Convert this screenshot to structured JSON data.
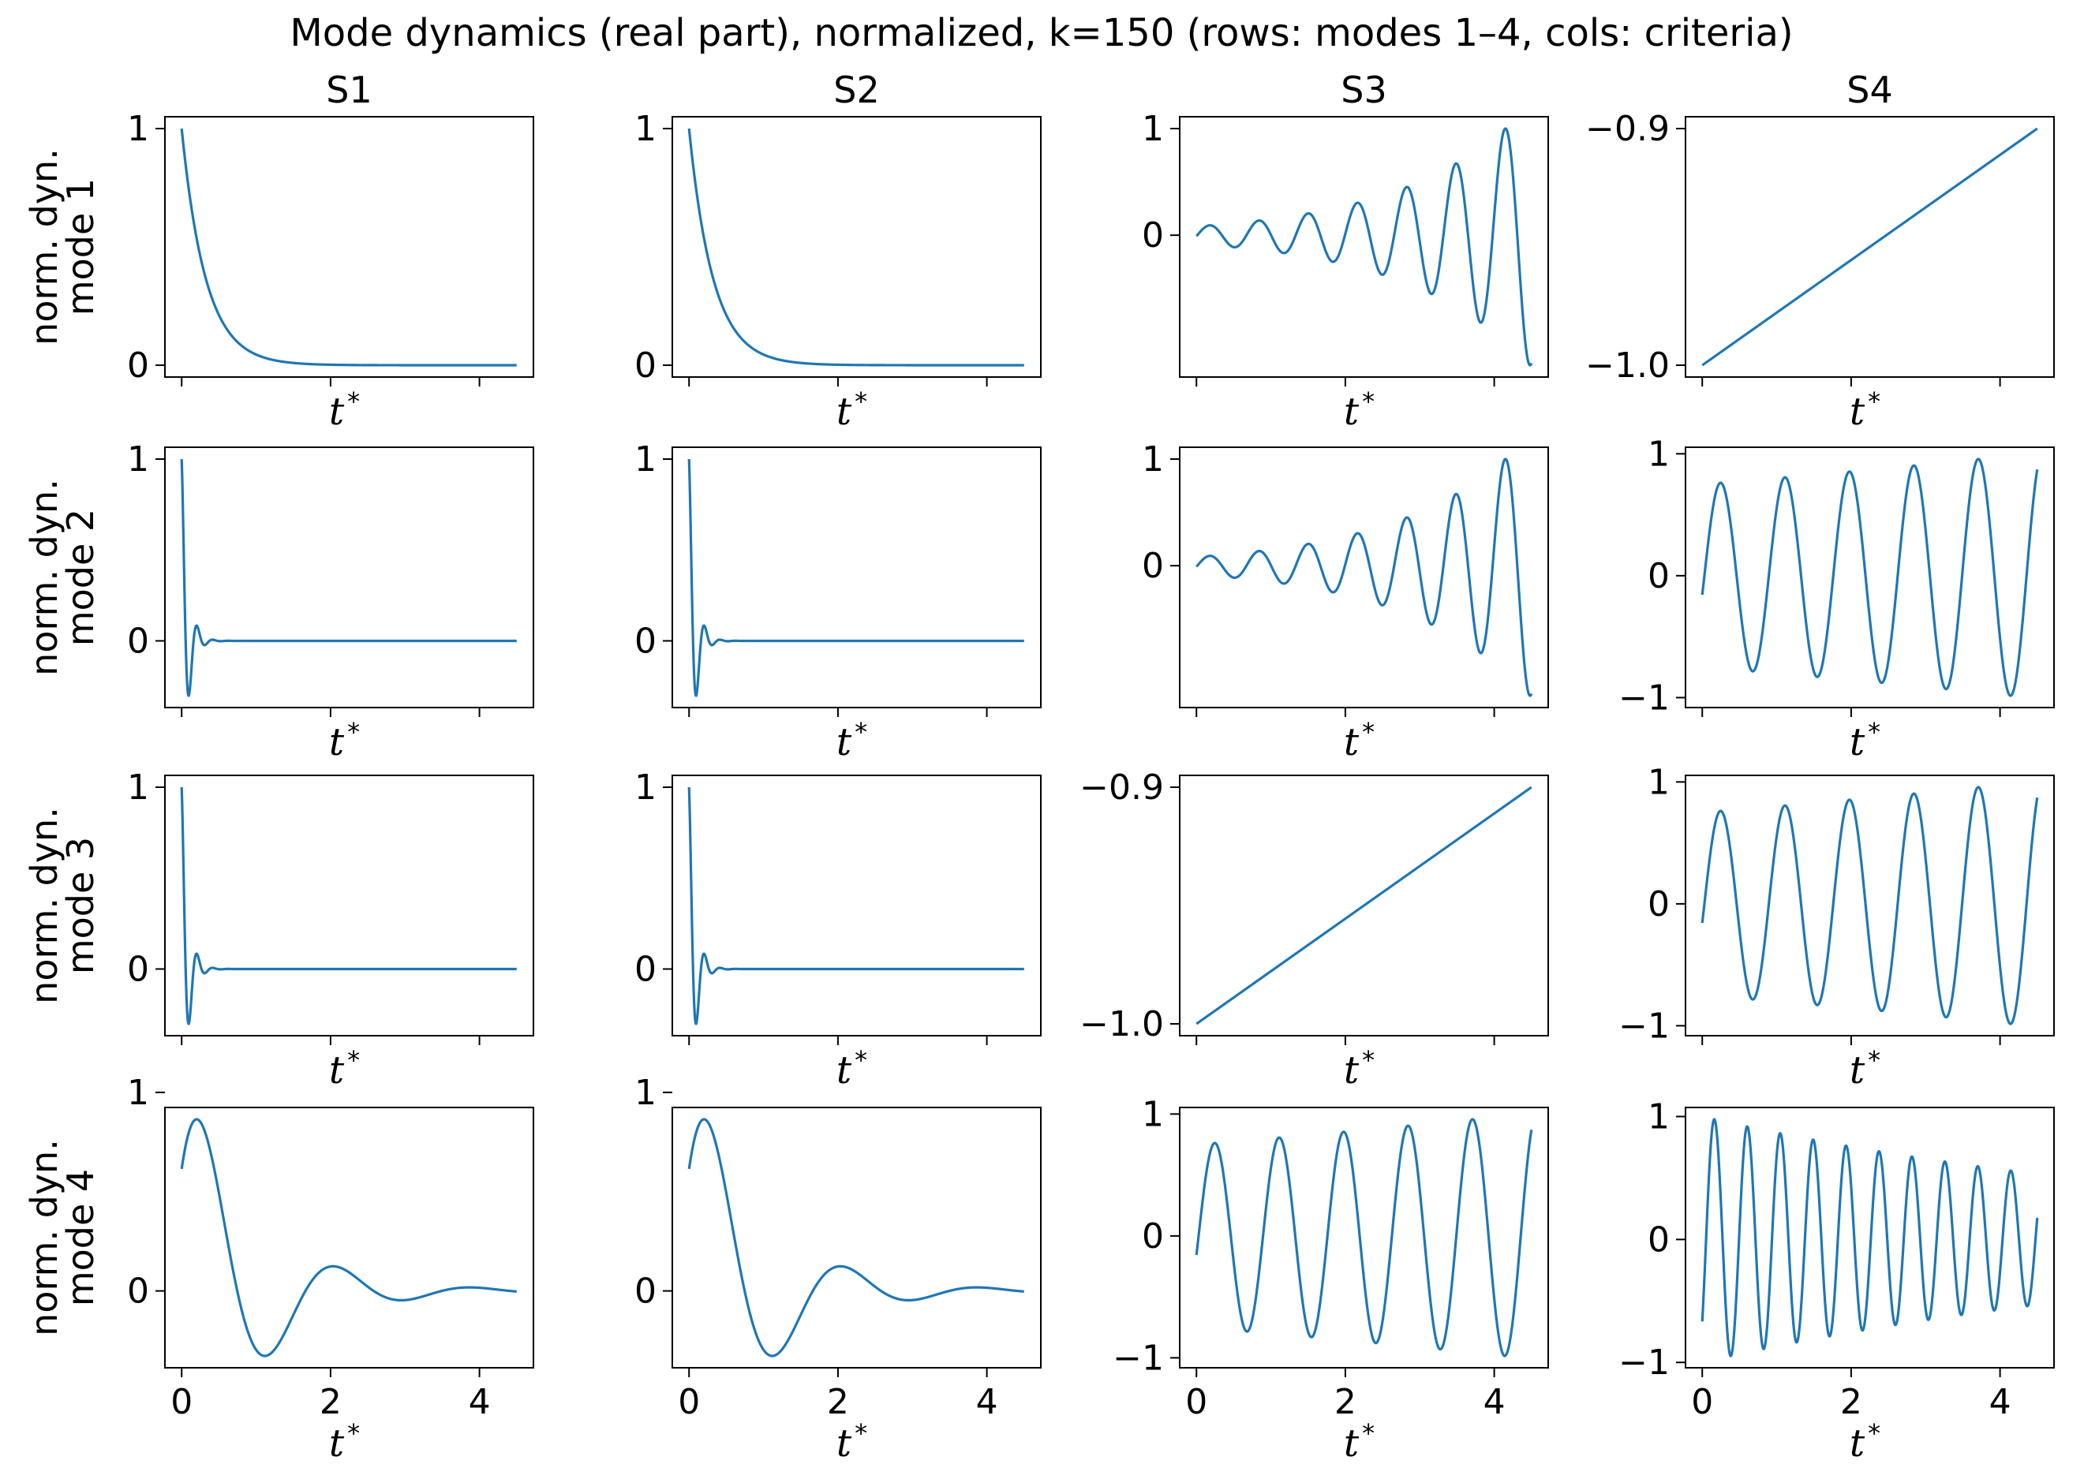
{
  "title": "Mode dynamics (real part), normalized, k=150  (rows: modes 1–4, cols: criteria)",
  "x_label_italic": "t",
  "x_label_sup": "*",
  "y_label_line1": "norm. dyn.",
  "columns": [
    "S1",
    "S2",
    "S3",
    "S4"
  ],
  "rows": [
    "mode 1",
    "mode 2",
    "mode 3",
    "mode 4"
  ],
  "colors": {
    "line": "#1f77b4",
    "axes": "#000000",
    "background": "#ffffff"
  },
  "chart_data": {
    "type": "line",
    "layout": "grid 4x4, shared x axis",
    "x_range": [
      0,
      4.5
    ],
    "x_ticks": [
      "0",
      "2",
      "4"
    ],
    "xlabel": "t*",
    "grid": false,
    "legend": "none",
    "panels": [
      [
        {
          "row": "mode 1",
          "col": "S1",
          "type": "line",
          "shape": "exponential decay 1 → 0",
          "ylim": [
            0,
            1
          ],
          "y_ticks": [
            {
              "v": 1,
              "label": "1"
            },
            {
              "v": 0,
              "label": "0"
            }
          ]
        },
        {
          "row": "mode 1",
          "col": "S2",
          "type": "line",
          "shape": "exponential decay 1 → 0",
          "ylim": [
            0,
            1
          ],
          "y_ticks": [
            {
              "v": 1,
              "label": "1"
            },
            {
              "v": 0,
              "label": "0"
            }
          ]
        },
        {
          "row": "mode 1",
          "col": "S3",
          "type": "line",
          "shape": "growing oscillation, peak 1 at t≈4.3, min ≈ -0.8",
          "ylim": [
            -0.8,
            1
          ],
          "y_ticks": [
            {
              "v": 1,
              "label": "1"
            },
            {
              "v": 0,
              "label": "0"
            }
          ]
        },
        {
          "row": "mode 1",
          "col": "S4",
          "type": "line",
          "shape": "linear -1.0 → -0.9",
          "ylim": [
            -1.0,
            -0.9
          ],
          "y_ticks": [
            {
              "v": -0.9,
              "label": "−0.9"
            },
            {
              "v": -1.0,
              "label": "−1.0"
            }
          ]
        }
      ],
      [
        {
          "row": "mode 2",
          "col": "S1",
          "type": "line",
          "shape": "fast damped oscillation, dip ≈ -0.7 at t≈0.1, settles to 0",
          "ylim": [
            -0.7,
            1
          ],
          "y_ticks": [
            {
              "v": 1,
              "label": "1"
            },
            {
              "v": 0,
              "label": "0"
            }
          ]
        },
        {
          "row": "mode 2",
          "col": "S2",
          "type": "line",
          "shape": "fast damped oscillation, dip ≈ -0.7 at t≈0.1, settles to 0",
          "ylim": [
            -0.7,
            1
          ],
          "y_ticks": [
            {
              "v": 1,
              "label": "1"
            },
            {
              "v": 0,
              "label": "0"
            }
          ]
        },
        {
          "row": "mode 2",
          "col": "S3",
          "type": "line",
          "shape": "growing oscillation, peak 1 at t≈4.3, min ≈ -0.8",
          "ylim": [
            -0.8,
            1
          ],
          "y_ticks": [
            {
              "v": 1,
              "label": "1"
            },
            {
              "v": 0,
              "label": "0"
            }
          ]
        },
        {
          "row": "mode 2",
          "col": "S4",
          "type": "line",
          "shape": "sustained oscillation, amplitude ≈ 0.75 → 1, ~5 periods",
          "ylim": [
            -1,
            1
          ],
          "y_ticks": [
            {
              "v": 1,
              "label": "1"
            },
            {
              "v": 0,
              "label": "0"
            },
            {
              "v": -1,
              "label": "−1"
            }
          ]
        }
      ],
      [
        {
          "row": "mode 3",
          "col": "S1",
          "type": "line",
          "shape": "fast damped oscillation, dip ≈ -0.7 at t≈0.1, settles to 0",
          "ylim": [
            -0.7,
            1
          ],
          "y_ticks": [
            {
              "v": 1,
              "label": "1"
            },
            {
              "v": 0,
              "label": "0"
            }
          ]
        },
        {
          "row": "mode 3",
          "col": "S2",
          "type": "line",
          "shape": "fast damped oscillation, dip ≈ -0.7 at t≈0.1, settles to 0",
          "ylim": [
            -0.7,
            1
          ],
          "y_ticks": [
            {
              "v": 1,
              "label": "1"
            },
            {
              "v": 0,
              "label": "0"
            }
          ]
        },
        {
          "row": "mode 3",
          "col": "S3",
          "type": "line",
          "shape": "linear -1.0 → -0.9",
          "ylim": [
            -1.0,
            -0.9
          ],
          "y_ticks": [
            {
              "v": -0.9,
              "label": "−0.9"
            },
            {
              "v": -1.0,
              "label": "−1.0"
            }
          ]
        },
        {
          "row": "mode 3",
          "col": "S4",
          "type": "line",
          "shape": "sustained oscillation, amplitude ≈ 0.75 → 1, ~5 periods",
          "ylim": [
            -1,
            1
          ],
          "y_ticks": [
            {
              "v": 1,
              "label": "1"
            },
            {
              "v": 0,
              "label": "0"
            },
            {
              "v": -1,
              "label": "−1"
            }
          ]
        }
      ],
      [
        {
          "row": "mode 4",
          "col": "S1",
          "type": "line",
          "shape": "damped oscillation, 0.6 → peak 1 at t≈0.25, min ≈ -0.23 at t≈1.15, settles to 0",
          "ylim": [
            -0.25,
            1
          ],
          "y_ticks": [
            {
              "v": 1,
              "label": "1"
            },
            {
              "v": 0,
              "label": "0"
            }
          ]
        },
        {
          "row": "mode 4",
          "col": "S2",
          "type": "line",
          "shape": "damped oscillation, 0.6 → peak 1 at t≈0.25, min ≈ -0.23 at t≈1.15, settles to 0",
          "ylim": [
            -0.25,
            1
          ],
          "y_ticks": [
            {
              "v": 1,
              "label": "1"
            },
            {
              "v": 0,
              "label": "0"
            }
          ]
        },
        {
          "row": "mode 4",
          "col": "S3",
          "type": "line",
          "shape": "sustained oscillation, amplitude ≈ 0.75 → 1, ~5 periods",
          "ylim": [
            -1,
            1
          ],
          "y_ticks": [
            {
              "v": 1,
              "label": "1"
            },
            {
              "v": 0,
              "label": "0"
            },
            {
              "v": -1,
              "label": "−1"
            }
          ]
        },
        {
          "row": "mode 4",
          "col": "S4",
          "type": "line",
          "shape": "fast oscillation, amplitude 1 → 0.55, ~10 periods",
          "ylim": [
            -1,
            1
          ],
          "y_ticks": [
            {
              "v": 1,
              "label": "1"
            },
            {
              "v": 0,
              "label": "0"
            },
            {
              "v": -1,
              "label": "−1"
            }
          ]
        }
      ]
    ]
  }
}
